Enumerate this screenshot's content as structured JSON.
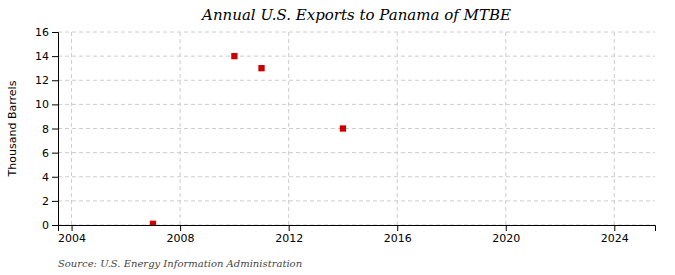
{
  "chart_data": {
    "type": "scatter",
    "title": "Annual U.S. Exports to Panama of MTBE",
    "ylabel": "Thousand Barrels",
    "annotation": "Source: U.S. Energy Information Administration",
    "x": [
      2007,
      2010,
      2011,
      2014
    ],
    "values": [
      0.1,
      14,
      13,
      8
    ],
    "color": "#cc0000",
    "marker": "square",
    "xlim": [
      2003.5,
      2025.5
    ],
    "ylim": [
      0,
      16
    ],
    "xticks": [
      2004,
      2008,
      2012,
      2016,
      2020,
      2024
    ],
    "yticks": [
      0,
      2,
      4,
      6,
      8,
      10,
      12,
      14,
      16
    ],
    "grid": true
  }
}
